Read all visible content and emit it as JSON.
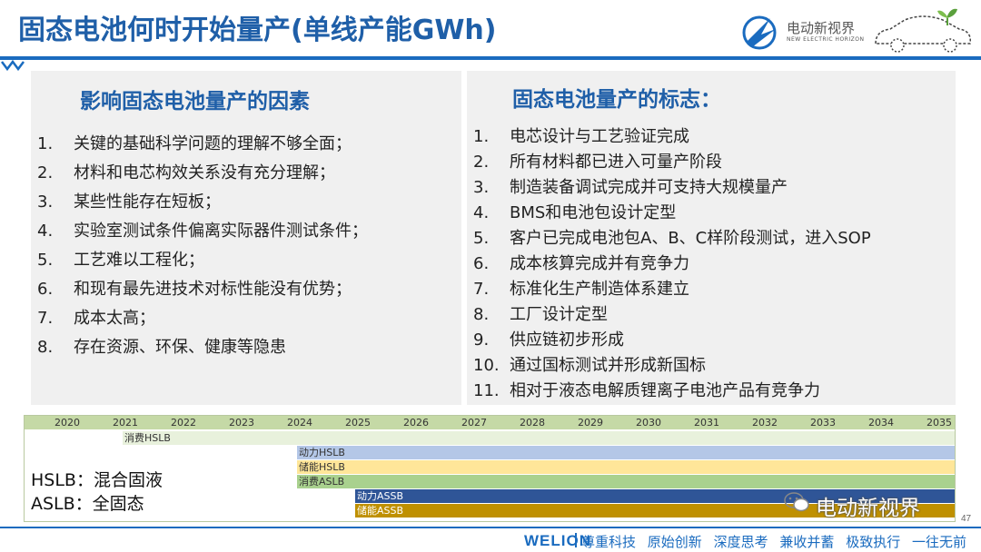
{
  "slide": {
    "title": "固态电池何时开始量产(单线产能GWh)",
    "page_number": "47"
  },
  "logo": {
    "name": "电动新视界",
    "subtitle": "NEW ELECTRIC HORIZON"
  },
  "left_panel": {
    "heading": "影响固态电池量产的因素",
    "items": [
      {
        "num": "1.",
        "text": "关键的基础科学问题的理解不够全面；"
      },
      {
        "num": "2.",
        "text": "材料和电芯构效关系没有充分理解；"
      },
      {
        "num": "3.",
        "text": "某些性能存在短板；"
      },
      {
        "num": "4.",
        "text": "实验室测试条件偏离实际器件测试条件；"
      },
      {
        "num": "5.",
        "text": "工艺难以工程化；"
      },
      {
        "num": "6.",
        "text": "和现有最先进技术对标性能没有优势；"
      },
      {
        "num": "7.",
        "text": "成本太高；"
      },
      {
        "num": "8.",
        "text": "存在资源、环保、健康等隐患"
      }
    ]
  },
  "right_panel": {
    "heading": "固态电池量产的标志：",
    "items": [
      {
        "num": "1.",
        "text": "电芯设计与工艺验证完成"
      },
      {
        "num": "2.",
        "text": "所有材料都已进入可量产阶段"
      },
      {
        "num": "3.",
        "text": "制造装备调试完成并可支持大规模量产"
      },
      {
        "num": "4.",
        "text": "BMS和电池包设计定型"
      },
      {
        "num": "5.",
        "text": "客户已完成电池包A、B、C样阶段测试，进入SOP"
      },
      {
        "num": "6.",
        "text": "成本核算完成并有竞争力"
      },
      {
        "num": "7.",
        "text": "标准化生产制造体系建立"
      },
      {
        "num": "8.",
        "text": "工厂设计定型"
      },
      {
        "num": "9.",
        "text": "供应链初步形成"
      },
      {
        "num": "10.",
        "text": "通过国标测试并形成新国标"
      },
      {
        "num": "11.",
        "text": "相对于液态电解质锂离子电池产品有竞争力"
      }
    ]
  },
  "timeline": {
    "years": [
      "2020",
      "2021",
      "2022",
      "2023",
      "2024",
      "2025",
      "2026",
      "2027",
      "2028",
      "2029",
      "2030",
      "2031",
      "2032",
      "2033",
      "2034",
      "2035"
    ],
    "bars": [
      {
        "label": "消费HSLB",
        "start": 2021,
        "end": 2035,
        "color": "#e8f1dc"
      },
      {
        "label": "动力HSLB",
        "start": 2024,
        "end": 2035,
        "color": "#b4c7e7"
      },
      {
        "label": "储能HSLB",
        "start": 2024,
        "end": 2035,
        "color": "#ffe699"
      },
      {
        "label": "消费ASLB",
        "start": 2024,
        "end": 2035,
        "color": "#a9d18e"
      },
      {
        "label": "动力ASSB",
        "start": 2025,
        "end": 2035,
        "color": "#2f5597"
      },
      {
        "label": "储能ASSB",
        "start": 2025,
        "end": 2035,
        "color": "#bf9000"
      }
    ],
    "legend": [
      "HSLB：混合固液",
      "ASLB：全固态"
    ]
  },
  "watermark": "电动新视界",
  "footer": {
    "brand": "WELION",
    "slogans": [
      "尊重科技",
      "原始创新",
      "深度思考",
      "兼收并蓄",
      "极致执行",
      "一往无前"
    ]
  }
}
